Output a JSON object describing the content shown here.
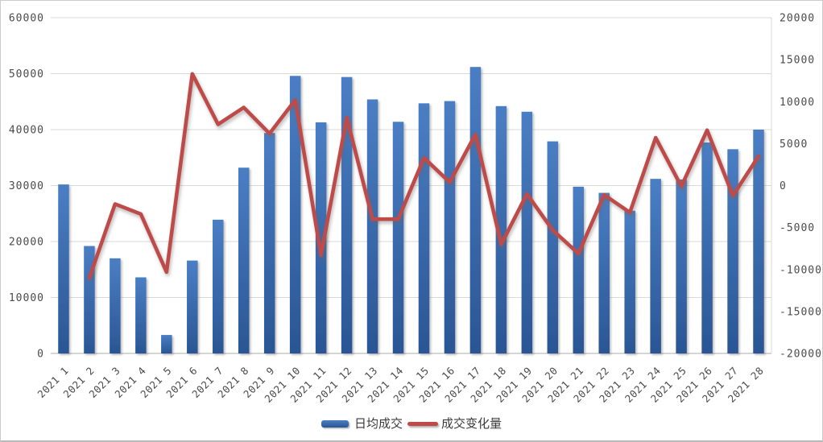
{
  "chart_data": {
    "type": "bar+line",
    "title": "",
    "categories": [
      "2021 1",
      "2021 2",
      "2021 3",
      "2021 4",
      "2021 5",
      "2021 6",
      "2021 7",
      "2021 8",
      "2021 9",
      "2021 10",
      "2021 11",
      "2021 12",
      "2021 13",
      "2021 14",
      "2021 15",
      "2021 16",
      "2021 17",
      "2021 18",
      "2021 19",
      "2021 20",
      "2021 21",
      "2021 22",
      "2021 23",
      "2021 24",
      "2021 25",
      "2021 26",
      "2021 27",
      "2021 28"
    ],
    "series": [
      {
        "name": "日均成交",
        "type": "bar",
        "axis": "left",
        "color_top": "#4a7ec4",
        "color_bottom": "#2a5694",
        "values": [
          30200,
          19200,
          17000,
          13600,
          3300,
          16600,
          23900,
          33200,
          39400,
          49600,
          41300,
          49400,
          45400,
          41400,
          44700,
          45100,
          51200,
          44200,
          43200,
          37900,
          29800,
          28700,
          25500,
          31200,
          31100,
          37700,
          36500,
          40000
        ]
      },
      {
        "name": "成交变化量",
        "type": "line",
        "axis": "right",
        "color": "#be4b48",
        "values": [
          null,
          -11000,
          -2200,
          -3400,
          -10300,
          13300,
          7300,
          9300,
          6200,
          10200,
          -8300,
          8100,
          -4000,
          -4000,
          3300,
          400,
          6100,
          -7000,
          -1000,
          -5300,
          -8100,
          -1100,
          -3200,
          5700,
          -100,
          6600,
          -1200,
          3500
        ]
      }
    ],
    "left_axis": {
      "min": 0,
      "max": 60000,
      "step": 10000,
      "tick_labels": [
        "0",
        "10000",
        "20000",
        "30000",
        "40000",
        "50000",
        "60000"
      ]
    },
    "right_axis": {
      "min": -20000,
      "max": 20000,
      "step": 5000,
      "tick_labels": [
        "-20000",
        "-15000",
        "-10000",
        "-5000",
        "0",
        "5000",
        "10000",
        "15000",
        "20000"
      ]
    },
    "legend_position": "bottom",
    "grid": "horizontal",
    "gridline_color": "#d9d9d9",
    "axis_line_color": "#c8c8c8",
    "x_label_rotation": -45
  }
}
